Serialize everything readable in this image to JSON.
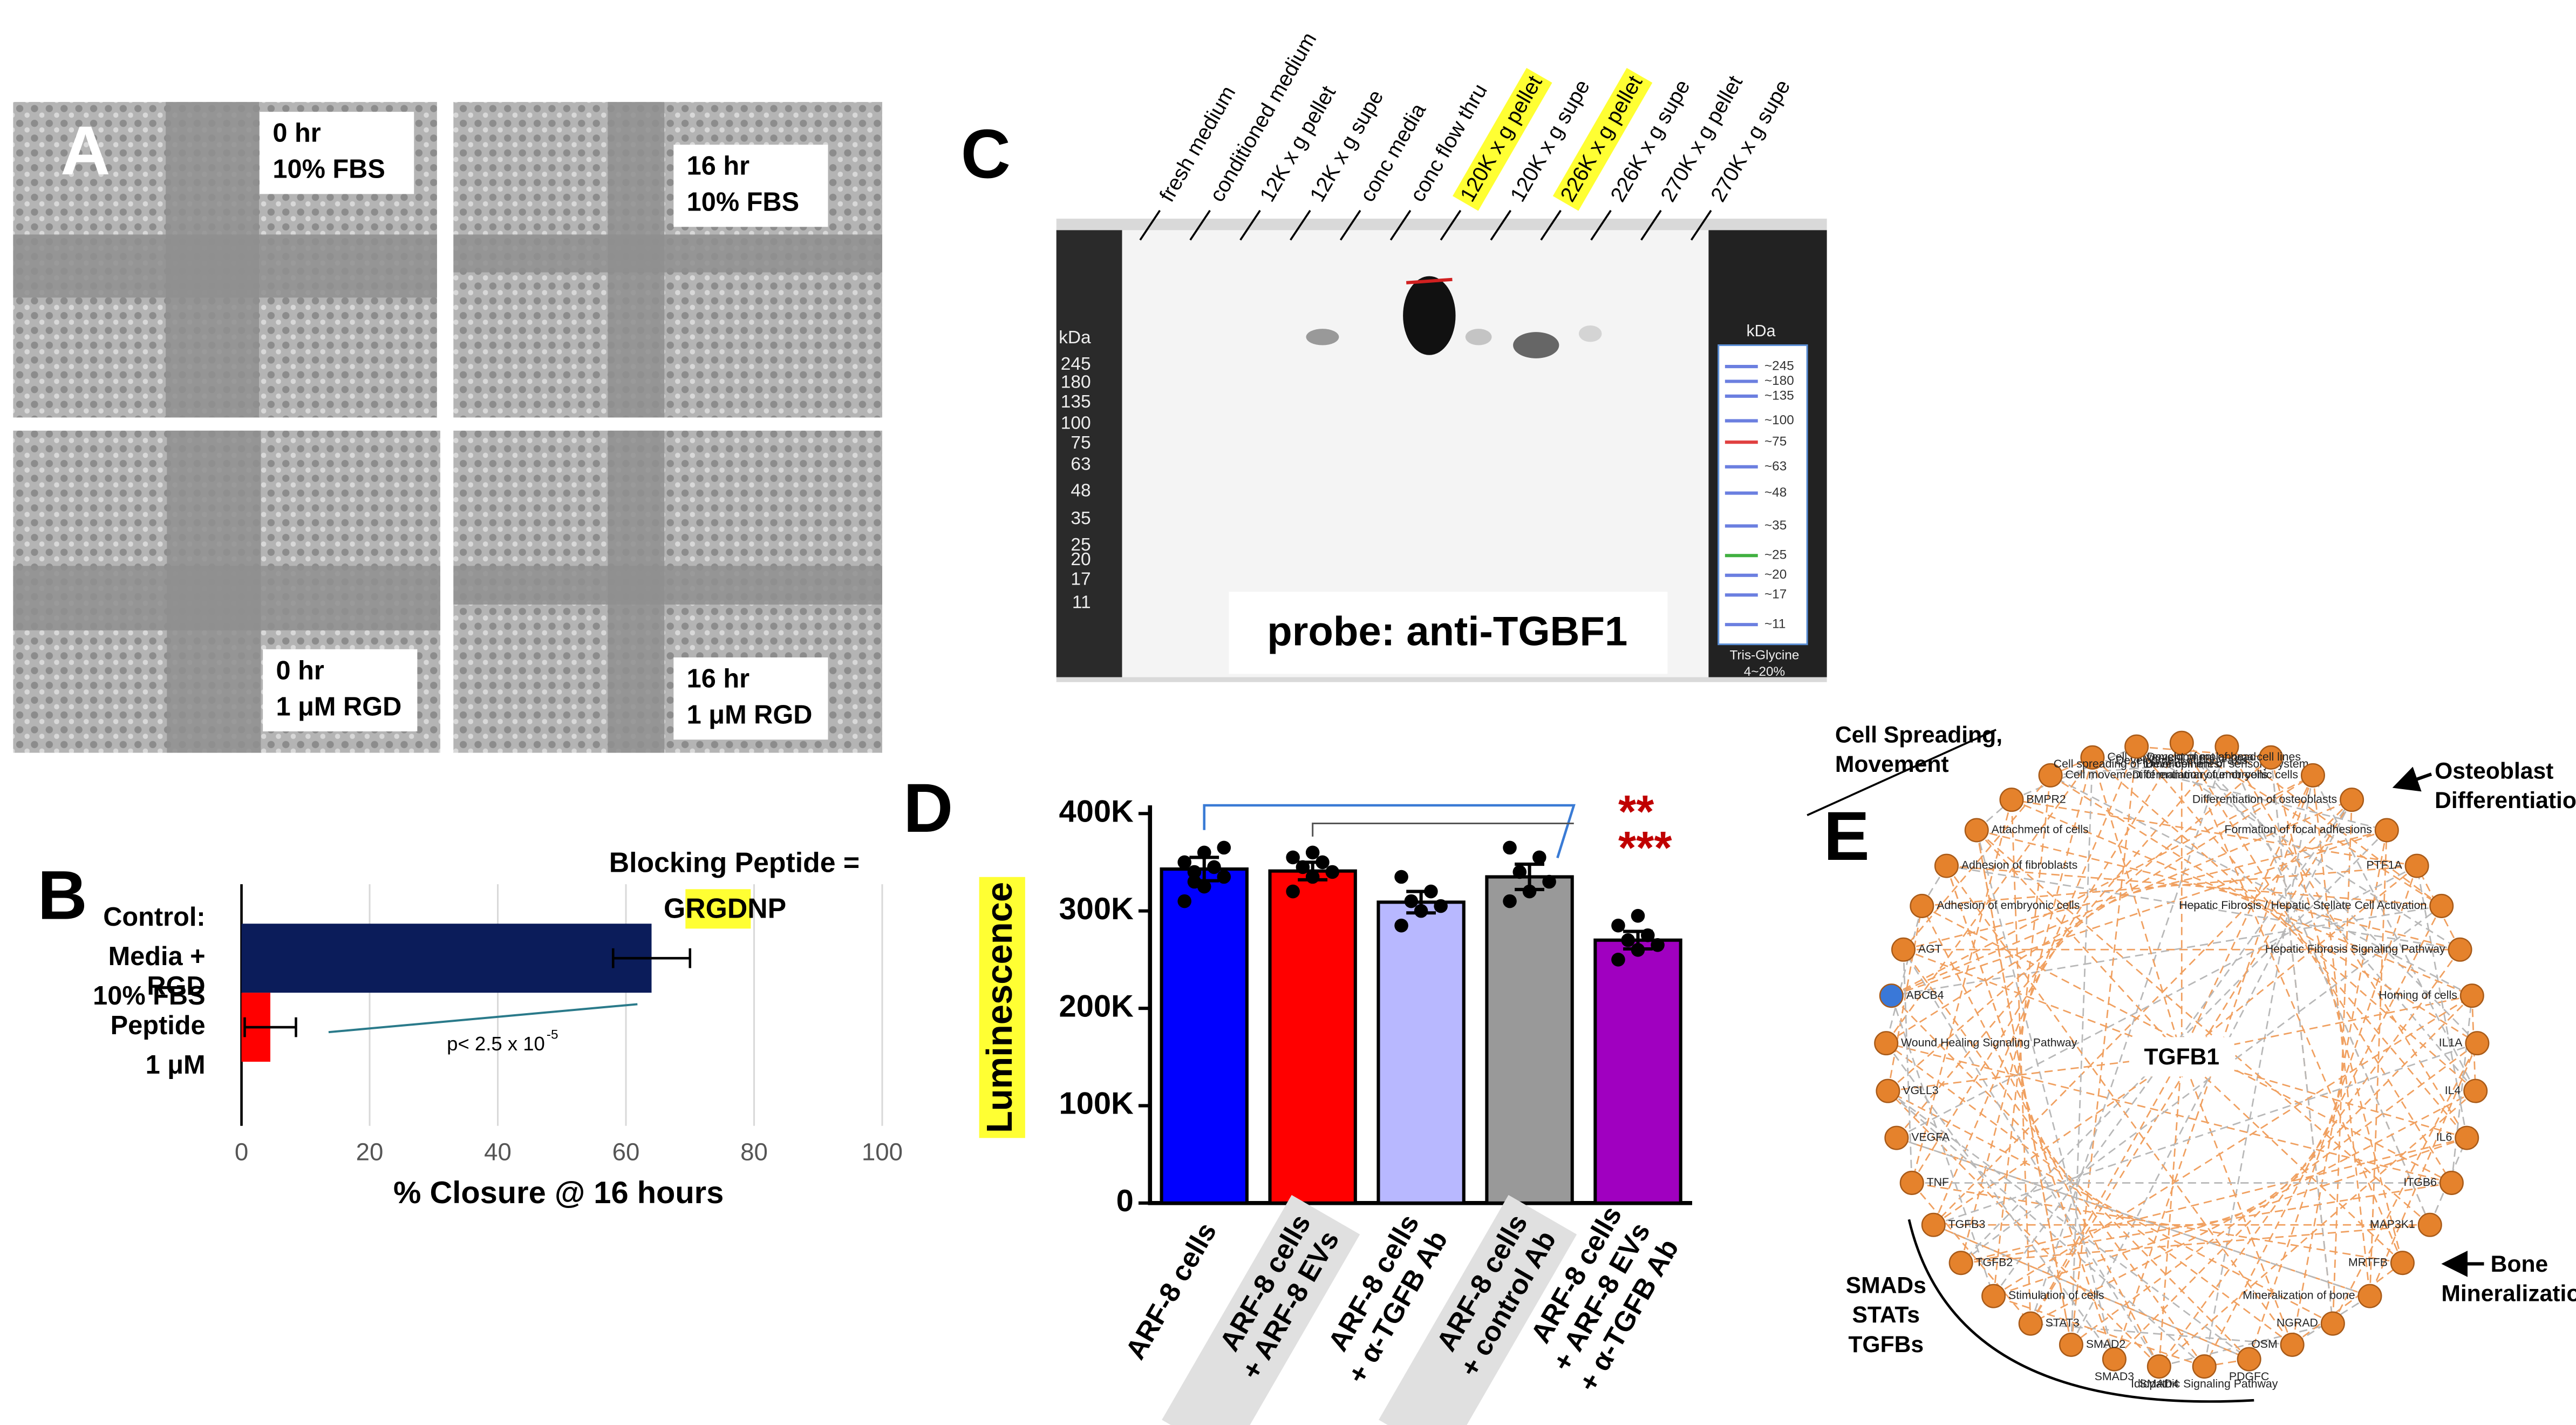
{
  "panel_a": {
    "label": "A",
    "images": [
      [
        "0 hr",
        "10% FBS"
      ],
      [
        "16 hr",
        "10% FBS"
      ],
      [
        "0 hr",
        "1 μM RGD"
      ],
      [
        "16 hr",
        "1 μM RGD"
      ]
    ]
  },
  "chart_data": [
    {
      "panel_label": "B",
      "type": "bar",
      "orientation": "horizontal",
      "categories": [
        [
          "Control:",
          "Media +",
          "10% FBS"
        ],
        [
          "RGD",
          "Peptide",
          "1 μM"
        ]
      ],
      "values": [
        64,
        4.5
      ],
      "errors": [
        6,
        4
      ],
      "colors": [
        "#0b1c5a",
        "#ff0000"
      ],
      "xlim": [
        0,
        100
      ],
      "xticks": [
        0,
        20,
        40,
        60,
        80,
        100
      ],
      "xlabel": "% Closure @ 16 hours",
      "grid": true,
      "annotation": {
        "prefix": "Blocking Peptide =",
        "sequence": [
          "G",
          "RGD",
          "NP"
        ]
      },
      "p_value": {
        "text": "p< 2.5 x 10",
        "exponent": "-5"
      }
    },
    {
      "panel_label": "D",
      "type": "bar",
      "orientation": "vertical",
      "categories": [
        [
          "ARF-8 cells"
        ],
        [
          "ARF-8 cells",
          "+ ARF-8 EVs"
        ],
        [
          "ARF-8 cells",
          "+ α-TGFB Ab"
        ],
        [
          "ARF-8 cells",
          "+ control Ab"
        ],
        [
          "ARF-8 cells",
          "+ ARF-8 EVs",
          "+ α-TGFB Ab"
        ]
      ],
      "values": [
        343000,
        341000,
        309000,
        335000,
        270000
      ],
      "errors": [
        12000,
        9000,
        11000,
        13000,
        9000
      ],
      "points": [
        [
          310000,
          325000,
          335000,
          340000,
          345000,
          350000,
          360000,
          365000,
          330000
        ],
        [
          320000,
          335000,
          340000,
          345000,
          350000,
          355000,
          360000
        ],
        [
          285000,
          300000,
          305000,
          310000,
          320000,
          335000
        ],
        [
          310000,
          320000,
          330000,
          340000,
          355000,
          365000
        ],
        [
          250000,
          260000,
          265000,
          270000,
          275000,
          285000,
          295000
        ]
      ],
      "colors": [
        "#0000ff",
        "#ff0000",
        "#b8b8ff",
        "#999999",
        "#a000c0"
      ],
      "ylim": [
        0,
        400000
      ],
      "yticks": [
        0,
        {
          "value": 100000,
          "label": "100K"
        },
        {
          "value": 200000,
          "label": "200K"
        },
        {
          "value": 300000,
          "label": "300K"
        },
        {
          "value": 400000,
          "label": "400K"
        }
      ],
      "ylabel": "Luminescence",
      "label_highlight": [
        false,
        true,
        false,
        true,
        false
      ],
      "significance": [
        "**",
        "***"
      ]
    }
  ],
  "panel_c": {
    "label": "C",
    "lanes": [
      "fresh medium",
      "conditioned medium",
      "12K x g pellet",
      "12K x g supe",
      "conc media",
      "conc flow thru",
      "120K x g pellet",
      "120K x g supe",
      "226K x g pellet",
      "226K x g supe",
      "270K x g pellet",
      "270K x g supe"
    ],
    "highlighted_lanes": [
      false,
      false,
      false,
      false,
      false,
      false,
      true,
      false,
      true,
      false,
      false,
      false
    ],
    "ladder_left": [
      "kDa",
      "245",
      "180",
      "135",
      "100",
      "75",
      "63",
      "48",
      "35",
      "25",
      "20",
      "17",
      "11"
    ],
    "ladder_right": [
      "kDa",
      "~245",
      "~180",
      "~135",
      "~100",
      "~75",
      "~63",
      "~48",
      "~35",
      "~25",
      "~20",
      "~17",
      "~11"
    ],
    "ladder_note": [
      "Tris-Glycine",
      "4~20%"
    ],
    "probe": "probe: anti-TGBF1"
  },
  "panel_e": {
    "label": "E",
    "center": "TGFB1",
    "nodes": [
      {
        "label": "Development of body axis"
      },
      {
        "label": "Development of sensory system"
      },
      {
        "label": "Development of head"
      },
      {
        "label": "Differentiation of embryonic cells"
      },
      {
        "label": "Differentiation of osteoblasts"
      },
      {
        "label": "Formation of focal adhesions"
      },
      {
        "label": "PTF1A"
      },
      {
        "label": "Hepatic Fibrosis / Hepatic Stellate Cell Activation"
      },
      {
        "label": "Hepatic Fibrosis Signaling Pathway"
      },
      {
        "label": "Homing of cells"
      },
      {
        "label": "IL1A"
      },
      {
        "label": "IL4"
      },
      {
        "label": "IL6"
      },
      {
        "label": "ITGB6"
      },
      {
        "label": "MAP3K1"
      },
      {
        "label": "MRTFB"
      },
      {
        "label": "Mineralization of bone"
      },
      {
        "label": "NGRAD"
      },
      {
        "label": "OSM"
      },
      {
        "label": "PDGFC"
      },
      {
        "label": "Idiopathic Signaling Pathway"
      },
      {
        "label": "SMAD4"
      },
      {
        "label": "SMAD3"
      },
      {
        "label": "SMAD2"
      },
      {
        "label": "STAT3"
      },
      {
        "label": "Stimulation of cells"
      },
      {
        "label": "TGFB2"
      },
      {
        "label": "TGFB3"
      },
      {
        "label": "TNF"
      },
      {
        "label": "VEGFA"
      },
      {
        "label": "VGLL3"
      },
      {
        "label": "Wound Healing Signaling Pathway"
      },
      {
        "label": "ABCB4",
        "color": "#3a78d8"
      },
      {
        "label": "AGT"
      },
      {
        "label": "Adhesion of embryonic cells"
      },
      {
        "label": "Adhesion of fibroblasts"
      },
      {
        "label": "Attachment of cells"
      },
      {
        "label": "BMPR2"
      },
      {
        "label": "Cell movement of mammary tumor cells"
      },
      {
        "label": "Cell movement of melanoma cell lines"
      },
      {
        "label": "Cell spreading of tumor cell lines"
      }
    ],
    "node_color": "#e5822c",
    "callouts": [
      [
        "Cell Spreading,",
        "Movement"
      ],
      [
        "Osteoblast",
        "Differentiation"
      ],
      [
        "Bone",
        "Mineralization"
      ],
      [
        "SMADs",
        "STATs",
        "TGFBs"
      ]
    ]
  }
}
